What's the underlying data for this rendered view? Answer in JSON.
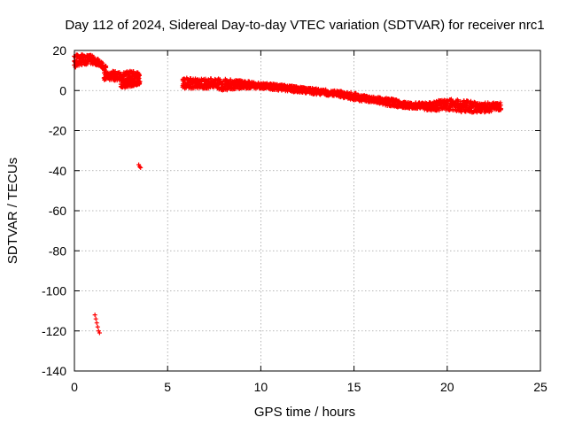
{
  "chart_data": {
    "type": "scatter",
    "title": "Day 112 of 2024, Sidereal Day-to-day VTEC variation (SDTVAR) for receiver nrc1",
    "xlabel": "GPS time / hours",
    "ylabel": "SDTVAR / TECUs",
    "xlim": [
      0,
      25
    ],
    "ylim": [
      -140,
      20
    ],
    "xticks": [
      0,
      5,
      10,
      15,
      20,
      25
    ],
    "yticks": [
      20,
      0,
      -20,
      -40,
      -60,
      -80,
      -100,
      -120,
      -140
    ],
    "grid": true,
    "marker_color": "#ff0000",
    "series": [
      {
        "name": "SDTVAR",
        "bands": [
          {
            "x": [
              0.0,
              0.5,
              0.8,
              1.1,
              1.5,
              1.7
            ],
            "y_low": [
              11,
              13,
              13,
              13,
              11,
              9
            ],
            "y_high": [
              18,
              18,
              18,
              17,
              14,
              12
            ]
          },
          {
            "x": [
              1.6,
              2.0,
              2.5,
              3.0,
              3.5
            ],
            "y_low": [
              5,
              5,
              5,
              5,
              6
            ],
            "y_high": [
              9,
              10,
              9,
              10,
              9
            ]
          },
          {
            "x": [
              2.5,
              3.0,
              3.5
            ],
            "y_low": [
              1,
              2,
              3
            ],
            "y_high": [
              5,
              5,
              5
            ]
          },
          {
            "x": [
              5.8,
              6.5,
              7.0,
              7.5,
              8.0,
              9.0,
              10.0,
              11.0,
              12.0,
              13.0,
              14.0,
              15.0,
              16.0,
              17.0,
              18.0,
              18.5,
              19.0,
              20.0,
              21.0,
              22.0,
              22.9
            ],
            "y_low": [
              1,
              1,
              1,
              1,
              0,
              1,
              1,
              0,
              -1,
              -2,
              -3,
              -5,
              -6,
              -8,
              -9,
              -9,
              -10,
              -10,
              -11,
              -11,
              -10
            ],
            "y_high": [
              7,
              6,
              6,
              6,
              6,
              5,
              4,
              3,
              2,
              1,
              0,
              -1,
              -3,
              -4,
              -6,
              -6,
              -6,
              -4,
              -5,
              -6,
              -6
            ]
          }
        ],
        "points": [
          [
            3.45,
            -37
          ],
          [
            3.5,
            -38
          ],
          [
            3.55,
            -38.5
          ],
          [
            1.1,
            -112
          ],
          [
            1.15,
            -114
          ],
          [
            1.2,
            -116
          ],
          [
            1.25,
            -118
          ],
          [
            1.3,
            -120
          ],
          [
            1.35,
            -121
          ]
        ]
      }
    ]
  }
}
